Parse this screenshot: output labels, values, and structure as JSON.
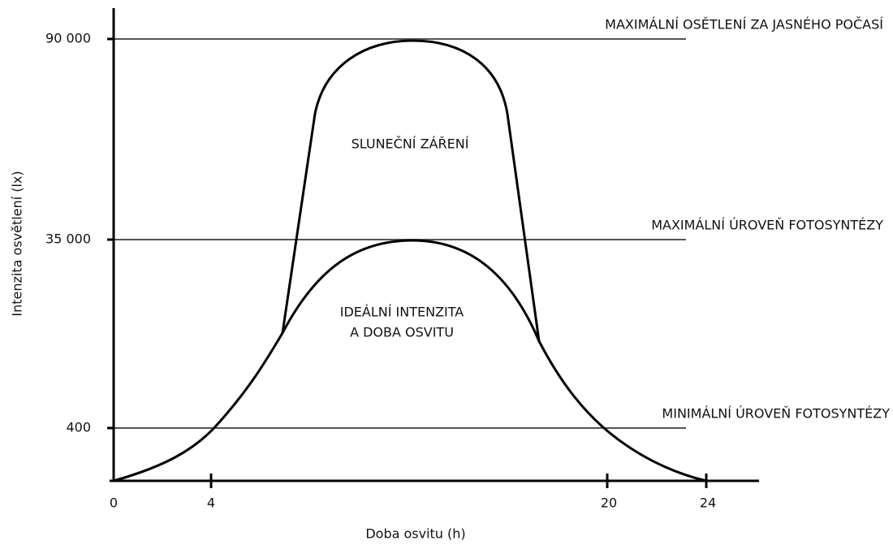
{
  "y_axis": {
    "label": "Intenzita osvětlení (lx)",
    "ticks": [
      "90 000",
      "35 000",
      "400"
    ]
  },
  "x_axis": {
    "label": "Doba osvitu (h)",
    "ticks": [
      "0",
      "4",
      "20",
      "24"
    ]
  },
  "levels": [
    "MAXIMÁLNÍ OSĚTLENÍ ZA JASNÉHO POČASÍ",
    "MAXIMÁLNÍ ÚROVEŇ FOTOSYNTÉZY",
    "MINIMÁLNÍ ÚROVEŇ FOTOSYNTÉZY"
  ],
  "regions": {
    "solar": "SLUNEČNÍ ZÁŘENÍ",
    "ideal": [
      "IDEÁLNÍ INTENZITA",
      "A DOBA OSVITU"
    ]
  }
}
